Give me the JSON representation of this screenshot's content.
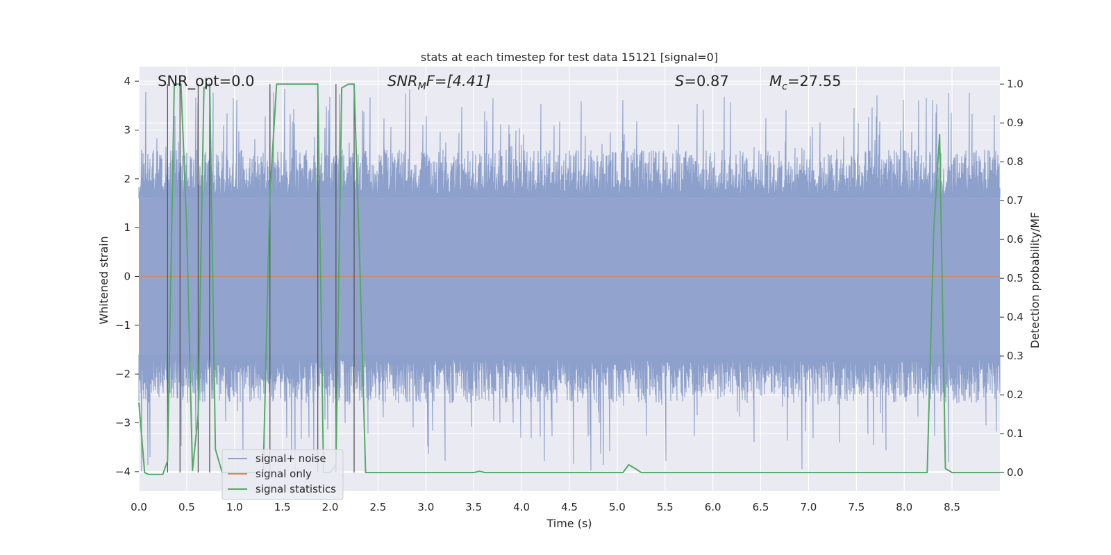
{
  "chart_data": {
    "type": "line",
    "title": "stats at each timestep for test data 15121 [signal=0]",
    "xlabel": "Time (s)",
    "ylabel": "Whitened strain",
    "y2label": "Detection probability/MF",
    "xlim": [
      0.0,
      9.0
    ],
    "ylim": [
      -4.4,
      4.3
    ],
    "y2lim": [
      -0.048,
      1.045
    ],
    "x_ticks": [
      "0.0",
      "0.5",
      "1.0",
      "1.5",
      "2.0",
      "2.5",
      "3.0",
      "3.5",
      "4.0",
      "4.5",
      "5.0",
      "5.5",
      "6.0",
      "6.5",
      "7.0",
      "7.5",
      "8.0",
      "8.5"
    ],
    "y_ticks": [
      "4",
      "3",
      "2",
      "1",
      "0",
      "−1",
      "−2",
      "−3",
      "−4"
    ],
    "y2_ticks": [
      "1.0",
      "0.9",
      "0.8",
      "0.7",
      "0.6",
      "0.5",
      "0.4",
      "0.3",
      "0.2",
      "0.1",
      "0.0"
    ],
    "grid": true,
    "legend_position": "lower-left",
    "annotations": {
      "snr_opt": "SNR_opt=0.0",
      "snr_mf_base": "SNR",
      "snr_mf_sub": "M",
      "snr_mf_rest": "F=[4.41]",
      "s_base": "S",
      "s_rest": "=0.87",
      "mc_base": "M",
      "mc_sub": "c",
      "mc_rest": "=27.55"
    },
    "series": [
      {
        "name": "signal+ noise",
        "color": "#8da0cb",
        "description_axis": "left",
        "noise_amplitude_core": 1.6,
        "noise_peak_max": 3.9,
        "noise_trough_min": -4.0
      },
      {
        "name": "signal only",
        "color": "#dd8452",
        "description_axis": "left",
        "x": [
          0.0,
          9.0
        ],
        "y": [
          0.0,
          0.0
        ]
      },
      {
        "name": "signal statistics",
        "color": "#55a868",
        "description_axis": "right",
        "x": [
          0.0,
          0.06,
          0.1,
          0.25,
          0.3,
          0.37,
          0.44,
          0.5,
          0.56,
          0.62,
          0.68,
          0.74,
          0.8,
          0.87,
          0.93,
          1.0,
          1.3,
          1.37,
          1.44,
          1.5,
          1.87,
          1.93,
          2.0,
          2.06,
          2.12,
          2.19,
          2.25,
          2.31,
          2.37,
          2.43,
          3.5,
          3.56,
          3.62,
          5.0,
          5.06,
          5.12,
          5.19,
          5.25,
          8.24,
          8.31,
          8.37,
          8.43,
          8.5,
          9.0
        ],
        "y": [
          0.18,
          0.0,
          -0.005,
          -0.005,
          0.03,
          1.0,
          1.0,
          0.63,
          0.005,
          0.15,
          0.99,
          1.0,
          0.06,
          0.0,
          0.0,
          0.0,
          0.0,
          0.72,
          1.0,
          1.0,
          1.0,
          0.0,
          0.0,
          0.02,
          0.99,
          1.0,
          1.0,
          0.53,
          0.0,
          0.0,
          0.0,
          0.003,
          0.0,
          0.0,
          0.0,
          0.02,
          0.01,
          0.0,
          0.0,
          0.63,
          0.87,
          0.01,
          0.0,
          0.0
        ]
      }
    ],
    "vlines_x": [
      0.3,
      0.43,
      0.62,
      0.74,
      1.37,
      1.87,
      2.06,
      2.25
    ]
  }
}
